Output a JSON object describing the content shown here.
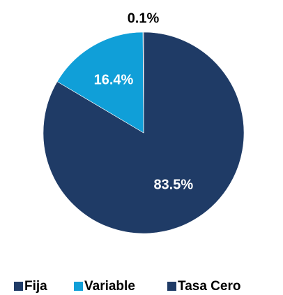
{
  "chart_data": {
    "type": "pie",
    "categories": [
      "Fija",
      "Variable",
      "Tasa Cero"
    ],
    "values": [
      83.5,
      16.4,
      0.1
    ],
    "value_labels": [
      "83.5%",
      "16.4%",
      "0.1%"
    ],
    "colors": [
      "#1f3b66",
      "#109fd8",
      "#1f3b66"
    ],
    "legend": "bottom"
  }
}
